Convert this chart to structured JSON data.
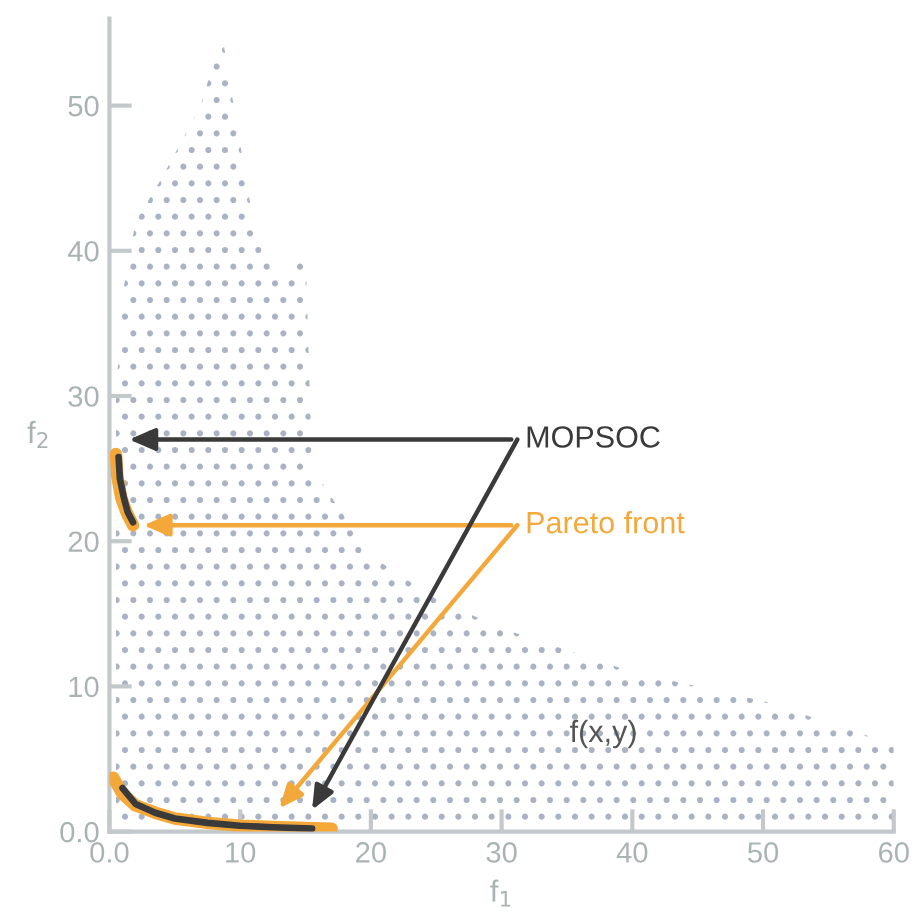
{
  "chart_data": {
    "type": "line",
    "xlabel": "f$_{1}$",
    "ylabel": "f$_{2}$",
    "xlim": [
      0,
      60
    ],
    "ylim": [
      0,
      56
    ],
    "xticks": [
      {
        "value": 0,
        "label": "0.0"
      },
      10,
      20,
      30,
      40,
      50,
      60
    ],
    "yticks": [
      {
        "value": 0,
        "label": "0.0"
      },
      10,
      20,
      30,
      40,
      50
    ],
    "grid": false,
    "legend": false,
    "line_style": "solid",
    "marker": "none",
    "series": [
      {
        "type": "area",
        "color": "#a9b3c3",
        "x": [
          0.5,
          1,
          2,
          4,
          7,
          8.6,
          9.5,
          11,
          13,
          15,
          15.5,
          20,
          25,
          30,
          40,
          50,
          60
        ],
        "values": [
          30,
          37,
          42,
          45,
          50,
          55,
          50,
          42,
          38,
          40,
          25,
          19,
          16,
          14,
          11,
          9,
          6
        ]
      },
      {
        "name": "Pareto front",
        "color": "#f5a83a",
        "x": [
          0.3,
          1,
          2,
          3.5,
          5,
          7.5,
          10,
          13,
          17,
          null,
          0.5,
          0.6,
          0.9,
          1.3,
          1.8
        ],
        "values": [
          3.7,
          2.6,
          1.8,
          1.3,
          0.9,
          0.6,
          0.4,
          0.3,
          0.2,
          null,
          26,
          24.5,
          23,
          22,
          21.1
        ]
      },
      {
        "name": "MOPSOC",
        "color": "#3a3a3a",
        "x": [
          1,
          2,
          3.5,
          5,
          7.5,
          10,
          12.5,
          15.5,
          null,
          0.7,
          0.8,
          1.1,
          1.4,
          1.8
        ],
        "values": [
          3,
          1.9,
          1.3,
          0.9,
          0.6,
          0.4,
          0.3,
          0.2,
          null,
          25.8,
          24.3,
          23,
          22,
          21.3
        ]
      }
    ],
    "annotations": [
      "f(x,y)"
    ]
  }
}
